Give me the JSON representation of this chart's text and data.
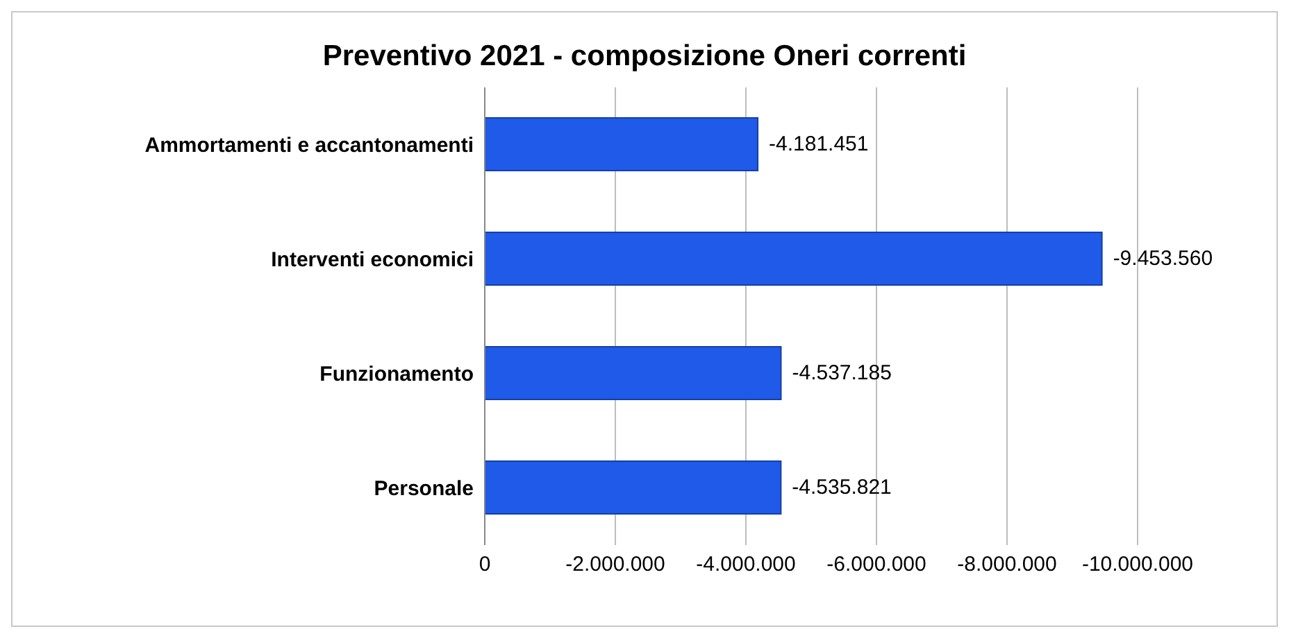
{
  "chart_data": {
    "type": "bar",
    "orientation": "horizontal",
    "title": "Preventivo 2021 - composizione  Oneri correnti",
    "categories": [
      "Ammortamenti e accantonamenti",
      "Interventi economici",
      "Funzionamento",
      "Personale"
    ],
    "values": [
      -4181451,
      -9453560,
      -4537185,
      -4535821
    ],
    "value_labels": [
      "-4.181.451",
      "-9.453.560",
      "-4.537.185",
      "-4.535.821"
    ],
    "color": "#1f5ae8",
    "xlim": [
      0,
      -10000000
    ],
    "xticks": [
      0,
      {
        "value": -2000000,
        "label": "-2.000.000"
      },
      {
        "value": -4000000,
        "label": "-4.000.000"
      },
      {
        "value": -6000000,
        "label": "-6.000.000"
      },
      {
        "value": -8000000,
        "label": "-8.000.000"
      },
      {
        "value": -10000000,
        "label": "-10.000.000"
      }
    ],
    "grid": "x"
  }
}
